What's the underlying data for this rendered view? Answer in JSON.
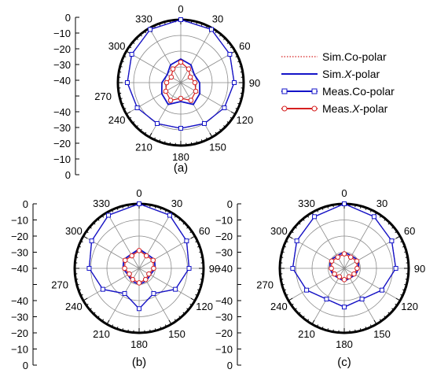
{
  "chart_data": [
    {
      "type": "polar-line",
      "panel_label": "(a)",
      "rlim": [
        -40,
        0
      ],
      "r_ticks": [
        "0",
        "−10",
        "−20",
        "−30",
        "−40",
        "270",
        "−40",
        "−30",
        "−20",
        "−10",
        "0"
      ],
      "angle_ticks": [
        0,
        30,
        60,
        90,
        120,
        150,
        180,
        210,
        240,
        270,
        300,
        330
      ],
      "series": [
        {
          "name": "Sim.Co-polar",
          "color": "#d62020",
          "angles": [
            0,
            30,
            60,
            90,
            120,
            150,
            180,
            210,
            240,
            270,
            300,
            330
          ],
          "values": [
            0,
            -1,
            -4,
            -6,
            -8,
            -10,
            -11,
            -10,
            -8,
            -6,
            -4,
            -1
          ]
        },
        {
          "name": "Sim.X-polar",
          "color": "#1414c8",
          "angles": [
            0,
            30,
            60,
            90,
            120,
            150,
            180,
            210,
            240,
            270,
            300,
            330
          ],
          "values": [
            -25,
            -27,
            -30,
            -28,
            -26,
            -24,
            -28,
            -24,
            -26,
            -28,
            -30,
            -27
          ]
        },
        {
          "name": "Meas.Co-polar",
          "color": "#1414c8",
          "angles": [
            0,
            30,
            60,
            90,
            120,
            150,
            180,
            210,
            240,
            270,
            300,
            330
          ],
          "values": [
            0,
            -1,
            -4,
            -6,
            -8,
            -10,
            -11,
            -10,
            -8,
            -6,
            -4,
            -1
          ]
        },
        {
          "name": "Meas.X-polar",
          "color": "#d62020",
          "angles": [
            0,
            30,
            60,
            90,
            120,
            150,
            180,
            210,
            240,
            270,
            300,
            330
          ],
          "values": [
            -27,
            -30,
            -33,
            -31,
            -29,
            -27,
            -30,
            -27,
            -29,
            -31,
            -33,
            -30
          ]
        }
      ]
    },
    {
      "type": "polar-line",
      "panel_label": "(b)",
      "rlim": [
        -40,
        0
      ],
      "r_ticks": [
        "0",
        "−10",
        "−20",
        "−30",
        "−40",
        "270",
        "−40",
        "−30",
        "−20",
        "−10",
        "0"
      ],
      "angle_ticks": [
        0,
        30,
        60,
        90,
        120,
        150,
        180,
        210,
        240,
        270,
        300,
        330
      ],
      "series": [
        {
          "name": "Sim.Co-polar",
          "angles": [
            0,
            30,
            60,
            90,
            120,
            150,
            180,
            210,
            240,
            270,
            300,
            330
          ],
          "values": [
            0,
            -2,
            -6,
            -9,
            -14,
            -22,
            -15,
            -22,
            -14,
            -9,
            -6,
            -2
          ]
        },
        {
          "name": "Sim.X-polar",
          "angles": [
            0,
            30,
            60,
            90,
            120,
            150,
            180,
            210,
            240,
            270,
            300,
            330
          ],
          "values": [
            -28,
            -30,
            -29,
            -30,
            -32,
            -31,
            -30,
            -31,
            -32,
            -30,
            -29,
            -30
          ]
        },
        {
          "name": "Meas.Co-polar",
          "angles": [
            0,
            30,
            60,
            90,
            120,
            150,
            180,
            210,
            240,
            270,
            300,
            330
          ],
          "values": [
            0,
            -2,
            -6,
            -9,
            -14,
            -22,
            -15,
            -22,
            -14,
            -9,
            -6,
            -2
          ]
        },
        {
          "name": "Meas.X-polar",
          "angles": [
            0,
            30,
            60,
            90,
            120,
            150,
            180,
            210,
            240,
            270,
            300,
            330
          ],
          "values": [
            -29,
            -31,
            -30,
            -31,
            -33,
            -32,
            -31,
            -32,
            -33,
            -31,
            -30,
            -31
          ]
        }
      ]
    },
    {
      "type": "polar-line",
      "panel_label": "(c)",
      "rlim": [
        -40,
        0
      ],
      "r_ticks": [
        "0",
        "−10",
        "−20",
        "−30",
        "−40",
        "270",
        "−40",
        "−30",
        "−20",
        "−10",
        "0"
      ],
      "angle_ticks": [
        0,
        30,
        60,
        90,
        120,
        150,
        180,
        210,
        240,
        270,
        300,
        330
      ],
      "series": [
        {
          "name": "Sim.Co-polar",
          "angles": [
            0,
            30,
            60,
            90,
            120,
            150,
            180,
            210,
            240,
            270,
            300,
            330
          ],
          "values": [
            0,
            -3,
            -6,
            -8,
            -13,
            -18,
            -16,
            -18,
            -13,
            -8,
            -6,
            -3
          ]
        },
        {
          "name": "Sim.X-polar",
          "angles": [
            0,
            30,
            60,
            90,
            120,
            150,
            180,
            210,
            240,
            270,
            300,
            330
          ],
          "values": [
            -30,
            -31,
            -30,
            -31,
            -32,
            -33,
            -32,
            -33,
            -32,
            -31,
            -30,
            -31
          ]
        },
        {
          "name": "Meas.Co-polar",
          "angles": [
            0,
            30,
            60,
            90,
            120,
            150,
            180,
            210,
            240,
            270,
            300,
            330
          ],
          "values": [
            0,
            -3,
            -6,
            -8,
            -13,
            -18,
            -16,
            -18,
            -13,
            -8,
            -6,
            -3
          ]
        },
        {
          "name": "Meas.X-polar",
          "angles": [
            0,
            30,
            60,
            90,
            120,
            150,
            180,
            210,
            240,
            270,
            300,
            330
          ],
          "values": [
            -31,
            -32,
            -31,
            -32,
            -33,
            -34,
            -33,
            -34,
            -33,
            -32,
            -31,
            -32
          ]
        }
      ]
    }
  ],
  "legend": {
    "placement": "right of panel (a)",
    "entries": [
      {
        "label": "Sim.Co-polar",
        "color": "#d62020",
        "style": "dotted"
      },
      {
        "label_main": "Sim.",
        "label_italic": "X",
        "label_tail": "-polar",
        "color": "#1414c8",
        "style": "solid"
      },
      {
        "label": "Meas.Co-polar",
        "color": "#1414c8",
        "style": "solid-square-markers"
      },
      {
        "label_main": "Meas.",
        "label_italic": "X",
        "label_tail": "-polar",
        "color": "#d62020",
        "style": "solid-circle-markers"
      }
    ]
  }
}
